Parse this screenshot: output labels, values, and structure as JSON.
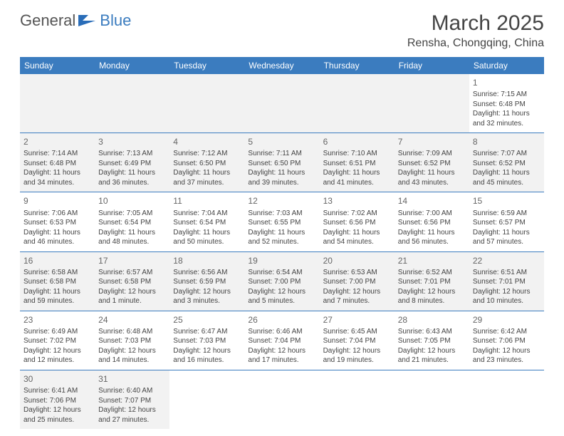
{
  "logo": {
    "general": "General",
    "blue": "Blue"
  },
  "title": {
    "month": "March 2025",
    "location": "Rensha, Chongqing, China"
  },
  "colors": {
    "header_bg": "#3b7cbf",
    "header_fg": "#ffffff",
    "shade_bg": "#f2f2f2",
    "border": "#3b7cbf",
    "text": "#444444"
  },
  "dayNames": [
    "Sunday",
    "Monday",
    "Tuesday",
    "Wednesday",
    "Thursday",
    "Friday",
    "Saturday"
  ],
  "weeks": [
    [
      null,
      null,
      null,
      null,
      null,
      null,
      {
        "n": "1",
        "sr": "Sunrise: 7:15 AM",
        "ss": "Sunset: 6:48 PM",
        "dl": "Daylight: 11 hours and 32 minutes."
      }
    ],
    [
      {
        "n": "2",
        "sr": "Sunrise: 7:14 AM",
        "ss": "Sunset: 6:48 PM",
        "dl": "Daylight: 11 hours and 34 minutes."
      },
      {
        "n": "3",
        "sr": "Sunrise: 7:13 AM",
        "ss": "Sunset: 6:49 PM",
        "dl": "Daylight: 11 hours and 36 minutes."
      },
      {
        "n": "4",
        "sr": "Sunrise: 7:12 AM",
        "ss": "Sunset: 6:50 PM",
        "dl": "Daylight: 11 hours and 37 minutes."
      },
      {
        "n": "5",
        "sr": "Sunrise: 7:11 AM",
        "ss": "Sunset: 6:50 PM",
        "dl": "Daylight: 11 hours and 39 minutes."
      },
      {
        "n": "6",
        "sr": "Sunrise: 7:10 AM",
        "ss": "Sunset: 6:51 PM",
        "dl": "Daylight: 11 hours and 41 minutes."
      },
      {
        "n": "7",
        "sr": "Sunrise: 7:09 AM",
        "ss": "Sunset: 6:52 PM",
        "dl": "Daylight: 11 hours and 43 minutes."
      },
      {
        "n": "8",
        "sr": "Sunrise: 7:07 AM",
        "ss": "Sunset: 6:52 PM",
        "dl": "Daylight: 11 hours and 45 minutes."
      }
    ],
    [
      {
        "n": "9",
        "sr": "Sunrise: 7:06 AM",
        "ss": "Sunset: 6:53 PM",
        "dl": "Daylight: 11 hours and 46 minutes."
      },
      {
        "n": "10",
        "sr": "Sunrise: 7:05 AM",
        "ss": "Sunset: 6:54 PM",
        "dl": "Daylight: 11 hours and 48 minutes."
      },
      {
        "n": "11",
        "sr": "Sunrise: 7:04 AM",
        "ss": "Sunset: 6:54 PM",
        "dl": "Daylight: 11 hours and 50 minutes."
      },
      {
        "n": "12",
        "sr": "Sunrise: 7:03 AM",
        "ss": "Sunset: 6:55 PM",
        "dl": "Daylight: 11 hours and 52 minutes."
      },
      {
        "n": "13",
        "sr": "Sunrise: 7:02 AM",
        "ss": "Sunset: 6:56 PM",
        "dl": "Daylight: 11 hours and 54 minutes."
      },
      {
        "n": "14",
        "sr": "Sunrise: 7:00 AM",
        "ss": "Sunset: 6:56 PM",
        "dl": "Daylight: 11 hours and 56 minutes."
      },
      {
        "n": "15",
        "sr": "Sunrise: 6:59 AM",
        "ss": "Sunset: 6:57 PM",
        "dl": "Daylight: 11 hours and 57 minutes."
      }
    ],
    [
      {
        "n": "16",
        "sr": "Sunrise: 6:58 AM",
        "ss": "Sunset: 6:58 PM",
        "dl": "Daylight: 11 hours and 59 minutes."
      },
      {
        "n": "17",
        "sr": "Sunrise: 6:57 AM",
        "ss": "Sunset: 6:58 PM",
        "dl": "Daylight: 12 hours and 1 minute."
      },
      {
        "n": "18",
        "sr": "Sunrise: 6:56 AM",
        "ss": "Sunset: 6:59 PM",
        "dl": "Daylight: 12 hours and 3 minutes."
      },
      {
        "n": "19",
        "sr": "Sunrise: 6:54 AM",
        "ss": "Sunset: 7:00 PM",
        "dl": "Daylight: 12 hours and 5 minutes."
      },
      {
        "n": "20",
        "sr": "Sunrise: 6:53 AM",
        "ss": "Sunset: 7:00 PM",
        "dl": "Daylight: 12 hours and 7 minutes."
      },
      {
        "n": "21",
        "sr": "Sunrise: 6:52 AM",
        "ss": "Sunset: 7:01 PM",
        "dl": "Daylight: 12 hours and 8 minutes."
      },
      {
        "n": "22",
        "sr": "Sunrise: 6:51 AM",
        "ss": "Sunset: 7:01 PM",
        "dl": "Daylight: 12 hours and 10 minutes."
      }
    ],
    [
      {
        "n": "23",
        "sr": "Sunrise: 6:49 AM",
        "ss": "Sunset: 7:02 PM",
        "dl": "Daylight: 12 hours and 12 minutes."
      },
      {
        "n": "24",
        "sr": "Sunrise: 6:48 AM",
        "ss": "Sunset: 7:03 PM",
        "dl": "Daylight: 12 hours and 14 minutes."
      },
      {
        "n": "25",
        "sr": "Sunrise: 6:47 AM",
        "ss": "Sunset: 7:03 PM",
        "dl": "Daylight: 12 hours and 16 minutes."
      },
      {
        "n": "26",
        "sr": "Sunrise: 6:46 AM",
        "ss": "Sunset: 7:04 PM",
        "dl": "Daylight: 12 hours and 17 minutes."
      },
      {
        "n": "27",
        "sr": "Sunrise: 6:45 AM",
        "ss": "Sunset: 7:04 PM",
        "dl": "Daylight: 12 hours and 19 minutes."
      },
      {
        "n": "28",
        "sr": "Sunrise: 6:43 AM",
        "ss": "Sunset: 7:05 PM",
        "dl": "Daylight: 12 hours and 21 minutes."
      },
      {
        "n": "29",
        "sr": "Sunrise: 6:42 AM",
        "ss": "Sunset: 7:06 PM",
        "dl": "Daylight: 12 hours and 23 minutes."
      }
    ],
    [
      {
        "n": "30",
        "sr": "Sunrise: 6:41 AM",
        "ss": "Sunset: 7:06 PM",
        "dl": "Daylight: 12 hours and 25 minutes."
      },
      {
        "n": "31",
        "sr": "Sunrise: 6:40 AM",
        "ss": "Sunset: 7:07 PM",
        "dl": "Daylight: 12 hours and 27 minutes."
      },
      null,
      null,
      null,
      null,
      null
    ]
  ]
}
